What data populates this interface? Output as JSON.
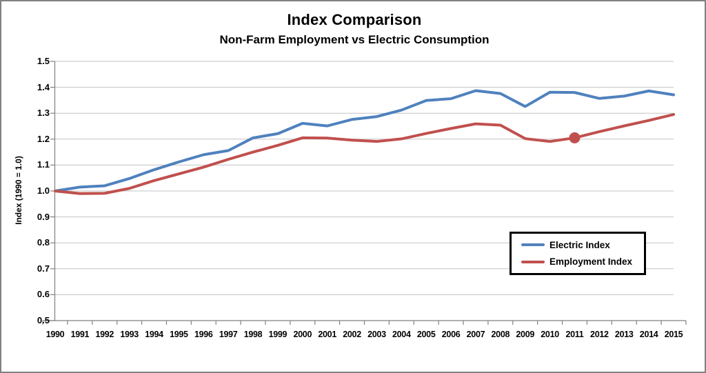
{
  "page": {
    "border_color": "#808080",
    "background": "#FFFFFF"
  },
  "chart_data": {
    "type": "line",
    "title": "Index Comparison",
    "subtitle": "Non-Farm Employment vs Electric Consumption",
    "xlabel": "",
    "ylabel": "Index (1990 = 1.0)",
    "ylim": [
      0.5,
      1.5
    ],
    "ytick_step": 0.1,
    "grid": "horizontal",
    "gridline_color": "#C3C3C3",
    "axis_color": "#808080",
    "text_color": "#000000",
    "legend_position": "middle-right",
    "legend_border_color": "#000000",
    "x": [
      1990,
      1991,
      1992,
      1993,
      1994,
      1995,
      1996,
      1997,
      1998,
      1999,
      2000,
      2001,
      2002,
      2003,
      2004,
      2005,
      2006,
      2007,
      2008,
      2009,
      2010,
      2011,
      2012,
      2013,
      2014,
      2015
    ],
    "series": [
      {
        "name": "Electric Index",
        "color": "#4F81BD",
        "values": [
          1.0,
          1.015,
          1.02,
          1.048,
          1.082,
          1.112,
          1.14,
          1.156,
          1.205,
          1.221,
          1.261,
          1.251,
          1.276,
          1.287,
          1.312,
          1.349,
          1.356,
          1.387,
          1.376,
          1.326,
          1.381,
          1.38,
          1.357,
          1.366,
          1.386,
          1.371
        ]
      },
      {
        "name": "Employment Index",
        "color": "#C0504D",
        "values": [
          1.0,
          0.99,
          0.991,
          1.01,
          1.04,
          1.066,
          1.092,
          1.122,
          1.15,
          1.176,
          1.205,
          1.204,
          1.196,
          1.191,
          1.201,
          1.222,
          1.241,
          1.259,
          1.254,
          1.202,
          1.191,
          1.205,
          1.229,
          1.251,
          1.272,
          1.295
        ],
        "marker": {
          "year": 2011,
          "value": 1.205
        }
      }
    ]
  }
}
